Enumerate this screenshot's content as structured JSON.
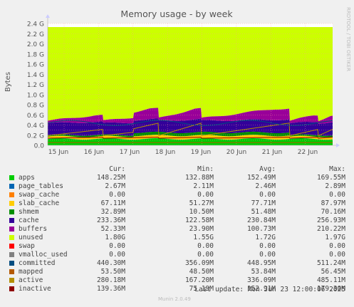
{
  "chart_data": {
    "type": "area",
    "title": "Memory usage - by week",
    "ylabel": "Bytes",
    "side_label": "RRDTOOL / TOBI OETIKER",
    "ylim": [
      0,
      2.4
    ],
    "yticks": [
      "0.0",
      "0.2 G",
      "0.4 G",
      "0.6 G",
      "0.8 G",
      "1.0 G",
      "1.2 G",
      "1.4 G",
      "1.6 G",
      "1.8 G",
      "2.0 G",
      "2.2 G",
      "2.4 G"
    ],
    "ytick_values": [
      0,
      0.2,
      0.4,
      0.6,
      0.8,
      1.0,
      1.2,
      1.4,
      1.6,
      1.8,
      2.0,
      2.2,
      2.4
    ],
    "categories": [
      "15 Jun",
      "16 Jun",
      "17 Jun",
      "18 Jun",
      "19 Jun",
      "20 Jun",
      "21 Jun",
      "22 Jun"
    ],
    "grid": true,
    "legend_placement": "bottom",
    "stacked_series_profile": {
      "cache_low": 0.23,
      "cache_high": 0.26,
      "buffers_low": 0.05,
      "buffers_high": 0.21,
      "total": 2.33
    }
  },
  "legend_header": {
    "cur": "Cur:",
    "min": "Min:",
    "avg": "Avg:",
    "max": "Max:"
  },
  "legend": [
    {
      "name": "apps",
      "color": "#00cc00",
      "cur": "148.25M",
      "min": "132.88M",
      "avg": "152.49M",
      "max": "169.55M"
    },
    {
      "name": "page_tables",
      "color": "#0066b3",
      "cur": "2.67M",
      "min": "2.11M",
      "avg": "2.46M",
      "max": "2.89M"
    },
    {
      "name": "swap_cache",
      "color": "#ff8000",
      "cur": "0.00",
      "min": "0.00",
      "avg": "0.00",
      "max": "0.00"
    },
    {
      "name": "slab_cache",
      "color": "#ffcc00",
      "cur": "67.11M",
      "min": "51.27M",
      "avg": "77.71M",
      "max": "87.97M"
    },
    {
      "name": "shmem",
      "color": "#008f00",
      "cur": "32.89M",
      "min": "10.50M",
      "avg": "51.48M",
      "max": "70.16M"
    },
    {
      "name": "cache",
      "color": "#330099",
      "cur": "233.36M",
      "min": "122.58M",
      "avg": "230.84M",
      "max": "256.93M"
    },
    {
      "name": "buffers",
      "color": "#990099",
      "cur": "52.33M",
      "min": "23.90M",
      "avg": "100.73M",
      "max": "210.22M"
    },
    {
      "name": "unused",
      "color": "#ccff00",
      "cur": "1.80G",
      "min": "1.55G",
      "avg": "1.72G",
      "max": "1.97G"
    },
    {
      "name": "swap",
      "color": "#ff0000",
      "cur": "0.00",
      "min": "0.00",
      "avg": "0.00",
      "max": "0.00"
    },
    {
      "name": "vmalloc_used",
      "color": "#808080",
      "cur": "0.00",
      "min": "0.00",
      "avg": "0.00",
      "max": "0.00"
    },
    {
      "name": "committed",
      "color": "#004d80",
      "cur": "440.30M",
      "min": "356.09M",
      "avg": "448.95M",
      "max": "511.24M"
    },
    {
      "name": "mapped",
      "color": "#b35900",
      "cur": "53.50M",
      "min": "48.50M",
      "avg": "53.84M",
      "max": "56.45M"
    },
    {
      "name": "active",
      "color": "#b38f00",
      "cur": "280.18M",
      "min": "167.20M",
      "avg": "336.09M",
      "max": "485.11M"
    },
    {
      "name": "inactive",
      "color": "#8f0000",
      "cur": "139.36M",
      "min": "75.19M",
      "avg": "152.91M",
      "max": "179.30M"
    }
  ],
  "footer": {
    "last_update": "Last update: Mon Jun 23 12:00:06 2025",
    "munin": "Munin 2.0.49"
  }
}
